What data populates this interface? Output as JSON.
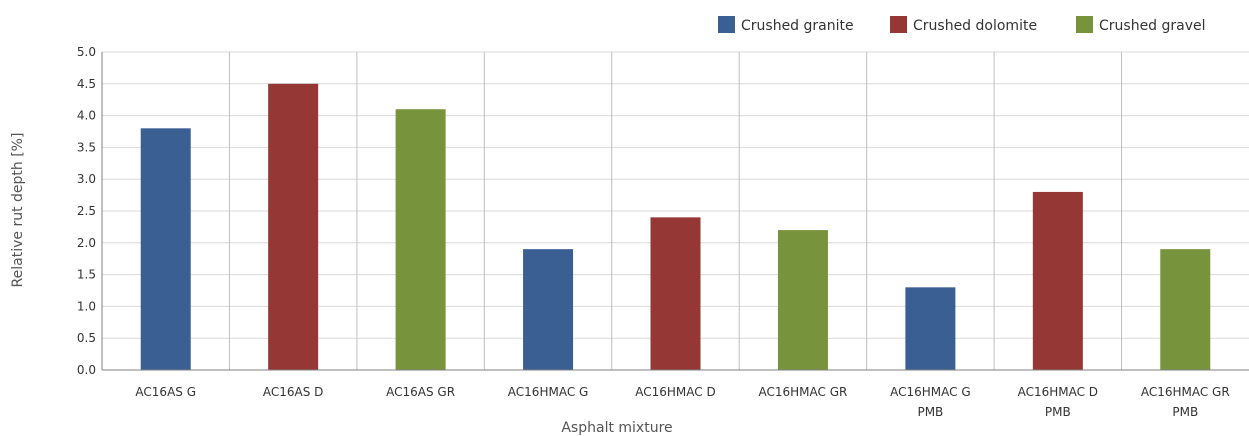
{
  "chart_data": {
    "type": "bar",
    "xlabel": "Asphalt mixture",
    "ylabel": "Relative rut depth [%]",
    "ylim": [
      0,
      5
    ],
    "yticks": [
      "0.0",
      "0.5",
      "1.0",
      "1.5",
      "2.0",
      "2.5",
      "3.0",
      "3.5",
      "4.0",
      "4.5",
      "5.0"
    ],
    "grid": true,
    "legend_position": "top-right",
    "series": [
      {
        "name": "Crushed granite",
        "color": "#3a5f93"
      },
      {
        "name": "Crushed dolomite",
        "color": "#953735"
      },
      {
        "name": "Crushed gravel",
        "color": "#77933c"
      }
    ],
    "categories": [
      {
        "lines": [
          "AC16AS G"
        ],
        "value": 3.8,
        "series": 0
      },
      {
        "lines": [
          "AC16AS D"
        ],
        "value": 4.5,
        "series": 1
      },
      {
        "lines": [
          "AC16AS GR"
        ],
        "value": 4.1,
        "series": 2
      },
      {
        "lines": [
          "AC16HMAC G"
        ],
        "value": 1.9,
        "series": 0
      },
      {
        "lines": [
          "AC16HMAC D"
        ],
        "value": 2.4,
        "series": 1
      },
      {
        "lines": [
          "AC16HMAC GR"
        ],
        "value": 2.2,
        "series": 2
      },
      {
        "lines": [
          "AC16HMAC G",
          "PMB"
        ],
        "value": 1.3,
        "series": 0
      },
      {
        "lines": [
          "AC16HMAC D",
          "PMB"
        ],
        "value": 2.8,
        "series": 1
      },
      {
        "lines": [
          "AC16HMAC GR",
          "PMB"
        ],
        "value": 1.9,
        "series": 2
      }
    ]
  }
}
